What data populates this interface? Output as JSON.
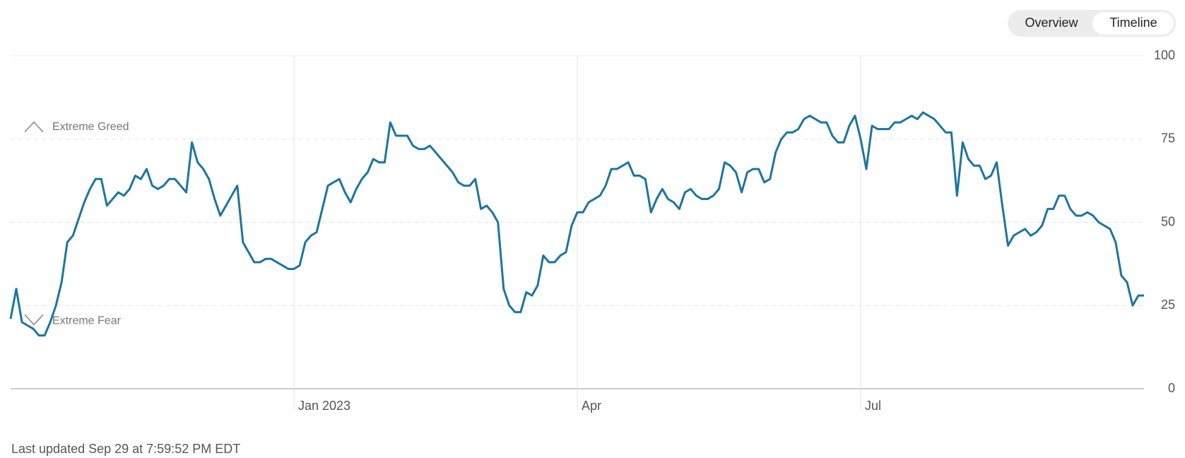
{
  "chart_data": {
    "type": "line",
    "color": "#1c75a0",
    "ylim": [
      0,
      100
    ],
    "yticks": [
      0,
      25,
      50,
      75,
      100
    ],
    "grid": true,
    "annotations": [
      "Extreme Greed",
      "Extreme Fear"
    ],
    "tabs": [
      "Overview",
      "Timeline"
    ],
    "footer": "Last updated Sep 29 at 7:59:52 PM EDT",
    "categories": [
      null,
      null,
      null,
      null,
      null,
      null,
      null,
      null,
      null,
      null,
      null,
      null,
      null,
      null,
      null,
      null,
      null,
      null,
      null,
      null,
      null,
      null,
      null,
      null,
      null,
      null,
      null,
      null,
      null,
      null,
      null,
      null,
      null,
      null,
      null,
      null,
      null,
      null,
      null,
      null,
      null,
      null,
      null,
      null,
      null,
      null,
      null,
      null,
      null,
      null,
      "Jan 2023",
      null,
      null,
      null,
      null,
      null,
      null,
      null,
      null,
      null,
      null,
      null,
      null,
      null,
      null,
      null,
      null,
      null,
      null,
      null,
      null,
      null,
      null,
      null,
      null,
      null,
      null,
      null,
      null,
      null,
      null,
      null,
      null,
      null,
      null,
      null,
      null,
      null,
      null,
      null,
      null,
      null,
      null,
      null,
      null,
      null,
      null,
      null,
      null,
      null,
      "Apr",
      null,
      null,
      null,
      null,
      null,
      null,
      null,
      null,
      null,
      null,
      null,
      null,
      null,
      null,
      null,
      null,
      null,
      null,
      null,
      null,
      null,
      null,
      null,
      null,
      null,
      null,
      null,
      null,
      null,
      null,
      null,
      null,
      null,
      null,
      null,
      null,
      null,
      null,
      null,
      null,
      null,
      null,
      null,
      null,
      null,
      null,
      null,
      null,
      null,
      "Jul",
      null,
      null,
      null,
      null,
      null,
      null,
      null,
      null,
      null,
      null,
      null,
      null,
      null,
      null,
      null,
      null,
      null,
      null,
      null,
      null,
      null,
      null,
      null,
      null,
      null,
      null,
      null,
      null,
      null,
      null,
      null,
      null,
      null,
      null,
      null,
      null,
      null,
      null,
      null,
      null,
      null,
      null,
      null,
      null,
      null,
      null,
      null,
      null,
      null,
      null
    ],
    "values": [
      21,
      30,
      20,
      19,
      18,
      16,
      16,
      20,
      25,
      32,
      44,
      46,
      51,
      56,
      60,
      63,
      63,
      55,
      57,
      59,
      58,
      60,
      64,
      63,
      66,
      61,
      60,
      61,
      63,
      63,
      61,
      59,
      74,
      68,
      66,
      63,
      57,
      52,
      55,
      58,
      61,
      44,
      41,
      38,
      38,
      39,
      39,
      38,
      37,
      36,
      36,
      37,
      44,
      46,
      47,
      54,
      61,
      62,
      63,
      59,
      56,
      60,
      63,
      65,
      69,
      68,
      68,
      80,
      76,
      76,
      76,
      73,
      72,
      72,
      73,
      71,
      69,
      67,
      65,
      62,
      61,
      61,
      63,
      54,
      55,
      53,
      50,
      30,
      25,
      23,
      23,
      29,
      28,
      31,
      40,
      38,
      38,
      40,
      41,
      49,
      53,
      53,
      56,
      57,
      58,
      61,
      66,
      66,
      67,
      68,
      64,
      64,
      63,
      53,
      57,
      60,
      57,
      56,
      54,
      59,
      60,
      58,
      57,
      57,
      58,
      60,
      68,
      67,
      65,
      59,
      65,
      66,
      66,
      62,
      63,
      71,
      75,
      77,
      77,
      78,
      81,
      82,
      81,
      80,
      80,
      76,
      74,
      74,
      79,
      82,
      75,
      66,
      79,
      78,
      78,
      78,
      80,
      80,
      81,
      82,
      81,
      83,
      82,
      81,
      79,
      77,
      77,
      58,
      74,
      69,
      67,
      67,
      63,
      64,
      68,
      55,
      43,
      46,
      47,
      48,
      46,
      47,
      49,
      54,
      54,
      58,
      58,
      54,
      52,
      52,
      53,
      52,
      50,
      49,
      48,
      44,
      34,
      32,
      25,
      28,
      28
    ]
  }
}
